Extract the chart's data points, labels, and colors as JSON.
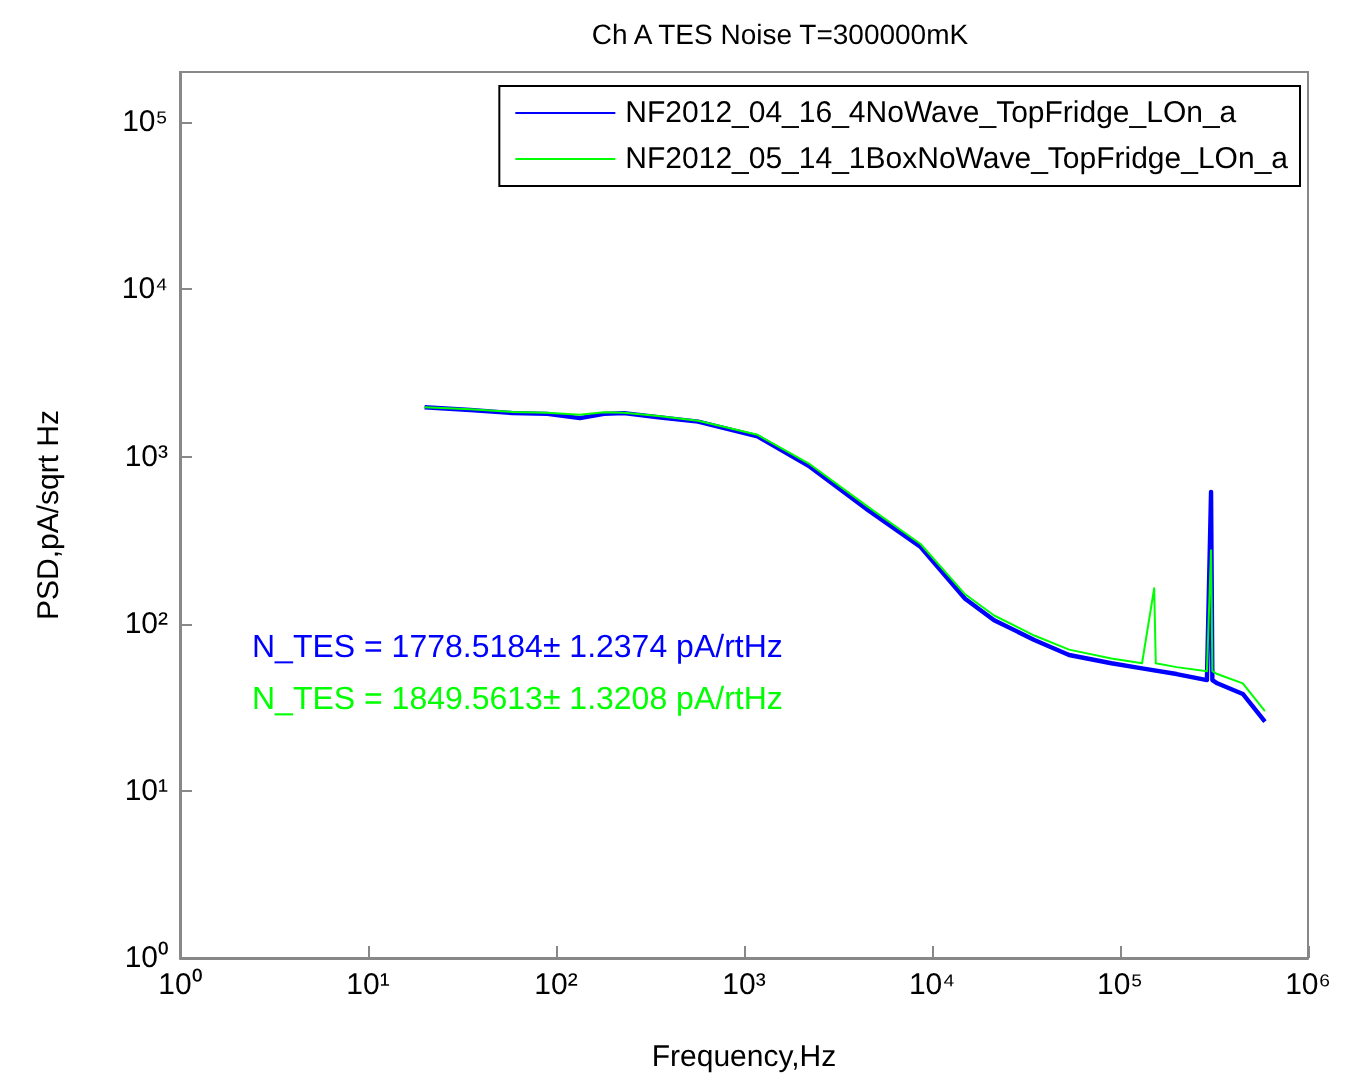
{
  "chart_data": {
    "type": "line",
    "title": "Ch A TES Noise T=300000mK",
    "xlabel": "Frequency,Hz",
    "ylabel": "PSD,pA/sqrt Hz",
    "log": "xy",
    "grid": false,
    "legend": "top right",
    "marker": "none",
    "line_style": "solid",
    "xlim": [
      1,
      1000000
    ],
    "ylim": [
      1,
      200000
    ],
    "xticks": [
      {
        "value": 1,
        "label": "10⁰"
      },
      {
        "value": 10,
        "label": "10¹"
      },
      {
        "value": 100,
        "label": "10²"
      },
      {
        "value": 1000,
        "label": "10³"
      },
      {
        "value": 10000,
        "label": "10⁴"
      },
      {
        "value": 100000,
        "label": "10⁵"
      },
      {
        "value": 1000000,
        "label": "10⁶"
      }
    ],
    "yticks": [
      {
        "value": 1,
        "label": "10⁰"
      },
      {
        "value": 10,
        "label": "10¹"
      },
      {
        "value": 100,
        "label": "10²"
      },
      {
        "value": 1000,
        "label": "10³"
      },
      {
        "value": 10000,
        "label": "10⁴"
      },
      {
        "value": 100000,
        "label": "10⁵"
      }
    ],
    "annotations": [
      "N_TES = 1778.5184± 1.2374 pA/rtHz",
      "N_TES = 1849.5613± 1.3208 pA/rtHz"
    ],
    "series": [
      {
        "name": "NF2012_04_16_4NoWave_TopFridge_LOn_a",
        "color": "#0000ff",
        "x": [
          20,
          35,
          59,
          90,
          134,
          180,
          230,
          350,
          570,
          1180,
          2240,
          4570,
          8700,
          15000,
          21400,
          35000,
          53600,
          90000,
          131000,
          200000,
          290000,
          305000,
          310000,
          329000,
          450000,
          590000
        ],
        "values": [
          1975,
          1900,
          1820,
          1800,
          1700,
          1800,
          1820,
          1720,
          1620,
          1320,
          870,
          478,
          288,
          141,
          105,
          80,
          65,
          58,
          54,
          50,
          46,
          615,
          46,
          44,
          38,
          26
        ]
      },
      {
        "name": "NF2012_05_14_1BoxNoWave_TopFridge_LOn_a",
        "color": "#00ff00",
        "x": [
          20,
          35,
          59,
          90,
          134,
          180,
          230,
          350,
          570,
          1180,
          2240,
          4570,
          8700,
          15000,
          21400,
          35000,
          53600,
          90000,
          131000,
          152000,
          155000,
          200000,
          290000,
          305000,
          310000,
          329000,
          450000,
          590000
        ],
        "values": [
          1975,
          1920,
          1850,
          1830,
          1780,
          1840,
          1830,
          1750,
          1640,
          1350,
          900,
          500,
          300,
          150,
          112,
          85,
          70,
          62,
          58,
          163,
          58,
          55,
          52,
          275,
          52,
          50,
          44,
          30
        ]
      }
    ]
  }
}
